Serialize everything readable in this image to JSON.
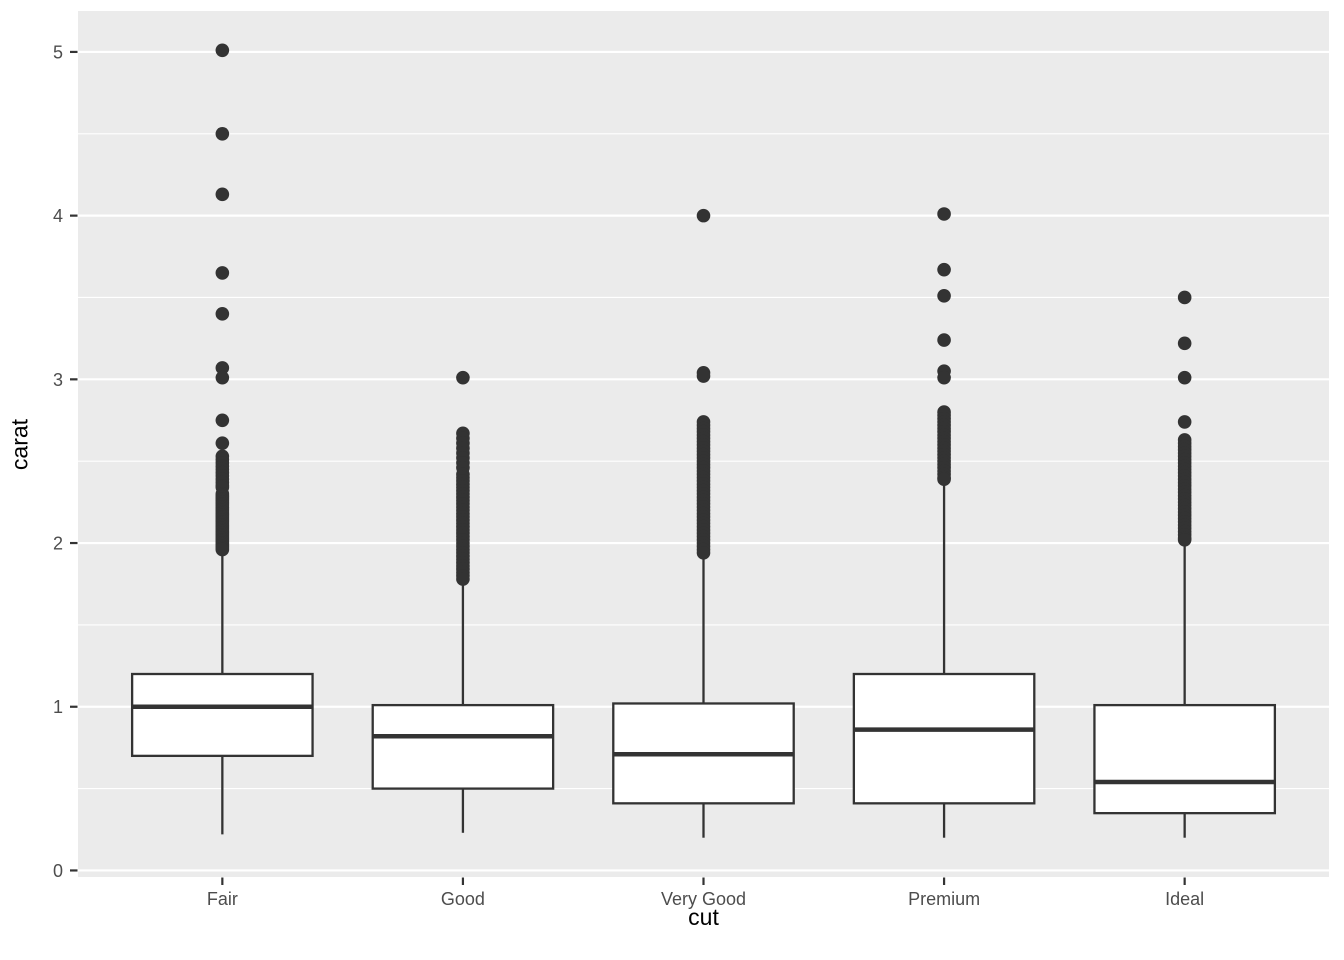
{
  "chart_data": {
    "type": "boxplot",
    "title": "",
    "xlabel": "cut",
    "ylabel": "carat",
    "categories": [
      "Fair",
      "Good",
      "Very Good",
      "Premium",
      "Ideal"
    ],
    "y_ticks": [
      0,
      1,
      2,
      3,
      4,
      5
    ],
    "y_minor_ticks": [
      0.5,
      1.5,
      2.5,
      3.5,
      4.5
    ],
    "ylim": [
      -0.04,
      5.25
    ],
    "grid": "major-and-minor",
    "legend": "none",
    "colors": {
      "panel_background": "#EBEBEB",
      "gridline": "#FFFFFF",
      "box_stroke": "#333333",
      "box_fill": "#FFFFFF",
      "outlier": "#333333",
      "tick_mark": "#333333",
      "axis_text": "#4D4D4D",
      "axis_title": "#000000",
      "figure_background": "#FFFFFF"
    },
    "series": [
      {
        "category": "Fair",
        "whisker_low": 0.22,
        "q1": 0.7,
        "median": 1.0,
        "q3": 1.2,
        "whisker_high": 1.95,
        "outliers": [
          5.01,
          4.5,
          4.13,
          3.65,
          3.4,
          3.07,
          3.01,
          2.75,
          2.61,
          2.53,
          2.51,
          2.49,
          2.47,
          2.45,
          2.43,
          2.41,
          2.39,
          2.37,
          2.35,
          2.34,
          2.3,
          2.29,
          2.28,
          2.27,
          2.26,
          2.25,
          2.24,
          2.23,
          2.22,
          2.21,
          2.2,
          2.19,
          2.18,
          2.17,
          2.16,
          2.15,
          2.14,
          2.13,
          2.12,
          2.11,
          2.1,
          2.09,
          2.08,
          2.07,
          2.06,
          2.05,
          2.04,
          2.03,
          2.02,
          2.01,
          2.0,
          1.99,
          1.98,
          1.97,
          1.96
        ]
      },
      {
        "category": "Good",
        "whisker_low": 0.23,
        "q1": 0.5,
        "median": 0.82,
        "q3": 1.01,
        "whisker_high": 1.76,
        "outliers": [
          3.01,
          2.67,
          2.64,
          2.61,
          2.58,
          2.55,
          2.52,
          2.49,
          2.46,
          2.42,
          2.4,
          2.38,
          2.36,
          2.34,
          2.32,
          2.3,
          2.28,
          2.26,
          2.24,
          2.22,
          2.2,
          2.18,
          2.16,
          2.14,
          2.12,
          2.1,
          2.08,
          2.06,
          2.04,
          2.02,
          2.0,
          1.98,
          1.96,
          1.94,
          1.92,
          1.9,
          1.88,
          1.86,
          1.84,
          1.82,
          1.8,
          1.78
        ]
      },
      {
        "category": "Very Good",
        "whisker_low": 0.2,
        "q1": 0.41,
        "median": 0.71,
        "q3": 1.02,
        "whisker_high": 1.92,
        "outliers": [
          4.0,
          3.04,
          3.02,
          2.74,
          2.72,
          2.7,
          2.68,
          2.66,
          2.64,
          2.62,
          2.6,
          2.58,
          2.56,
          2.54,
          2.52,
          2.5,
          2.48,
          2.46,
          2.44,
          2.42,
          2.4,
          2.38,
          2.36,
          2.34,
          2.32,
          2.3,
          2.28,
          2.26,
          2.24,
          2.22,
          2.2,
          2.18,
          2.16,
          2.14,
          2.12,
          2.1,
          2.08,
          2.06,
          2.04,
          2.02,
          2.0,
          1.98,
          1.96,
          1.94
        ]
      },
      {
        "category": "Premium",
        "whisker_low": 0.2,
        "q1": 0.41,
        "median": 0.86,
        "q3": 1.2,
        "whisker_high": 2.38,
        "outliers": [
          4.01,
          3.67,
          3.51,
          3.24,
          3.05,
          3.01,
          2.8,
          2.78,
          2.76,
          2.74,
          2.72,
          2.7,
          2.68,
          2.66,
          2.64,
          2.62,
          2.6,
          2.58,
          2.56,
          2.54,
          2.52,
          2.5,
          2.48,
          2.46,
          2.44,
          2.42,
          2.4,
          2.39
        ]
      },
      {
        "category": "Ideal",
        "whisker_low": 0.2,
        "q1": 0.35,
        "median": 0.54,
        "q3": 1.01,
        "whisker_high": 2.0,
        "outliers": [
          3.5,
          3.22,
          3.01,
          2.74,
          2.63,
          2.61,
          2.59,
          2.57,
          2.55,
          2.53,
          2.51,
          2.49,
          2.47,
          2.45,
          2.43,
          2.41,
          2.39,
          2.37,
          2.35,
          2.33,
          2.31,
          2.29,
          2.27,
          2.25,
          2.23,
          2.21,
          2.19,
          2.17,
          2.15,
          2.13,
          2.11,
          2.09,
          2.07,
          2.05,
          2.03,
          2.02
        ]
      }
    ]
  }
}
